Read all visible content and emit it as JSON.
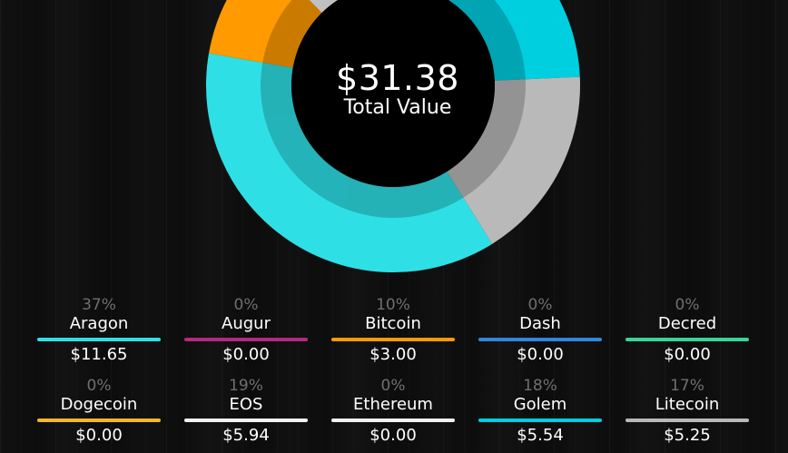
{
  "summary": {
    "total_value": "$31.38",
    "total_label": "Total Value"
  },
  "donut": {
    "segments": [
      {
        "coin": "Aragon",
        "share": 37,
        "color": "#2ee0e6"
      },
      {
        "coin": "Bitcoin",
        "share": 10,
        "color": "#ff9a00"
      },
      {
        "coin": "EOS",
        "share": 19,
        "color": "#f2f2f2"
      },
      {
        "coin": "Golem",
        "share": 18,
        "color": "#00cfe0"
      },
      {
        "coin": "Litecoin",
        "share": 17,
        "color": "#b9b9b9"
      }
    ]
  },
  "coins": [
    {
      "name": "Aragon",
      "percent": "37%",
      "value": "$11.65",
      "color": "#2ee0e6"
    },
    {
      "name": "Augur",
      "percent": "0%",
      "value": "$0.00",
      "color": "#b5287f"
    },
    {
      "name": "Bitcoin",
      "percent": "10%",
      "value": "$3.00",
      "color": "#ff9a00"
    },
    {
      "name": "Dash",
      "percent": "0%",
      "value": "$0.00",
      "color": "#2f86df"
    },
    {
      "name": "Decred",
      "percent": "0%",
      "value": "$0.00",
      "color": "#36d69a"
    },
    {
      "name": "Dogecoin",
      "percent": "0%",
      "value": "$0.00",
      "color": "#f2b827"
    },
    {
      "name": "EOS",
      "percent": "19%",
      "value": "$5.94",
      "color": "#f2f2f2"
    },
    {
      "name": "Ethereum",
      "percent": "0%",
      "value": "$0.00",
      "color": "#f2f2f2"
    },
    {
      "name": "Golem",
      "percent": "18%",
      "value": "$5.54",
      "color": "#00cfe0"
    },
    {
      "name": "Litecoin",
      "percent": "17%",
      "value": "$5.25",
      "color": "#b9b9b9"
    }
  ]
}
